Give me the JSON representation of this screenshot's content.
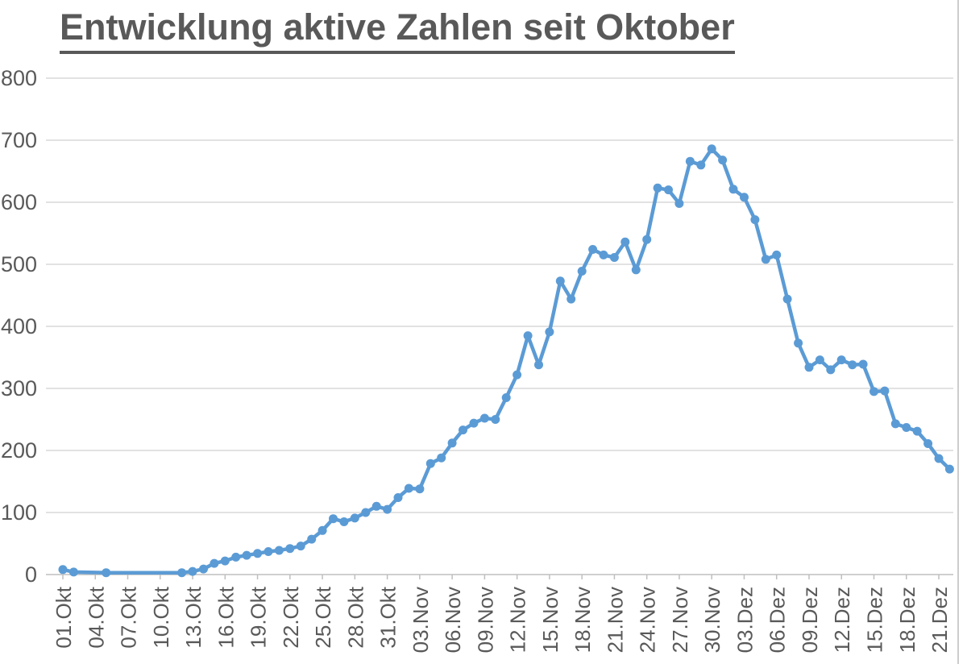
{
  "window": {
    "background": "#ffffff",
    "edge_color": "#cccccc"
  },
  "chart_data": {
    "type": "line",
    "title": "Entwicklung aktive Zahlen seit Oktober",
    "xlabel": "",
    "ylabel": "",
    "legend": "none",
    "grid": "horizontal",
    "ylim": [
      0,
      800
    ],
    "y_ticks": [
      0,
      100,
      200,
      300,
      400,
      500,
      600,
      700,
      800
    ],
    "x_tick_interval": 3,
    "x_tick_labels": [
      "01.Okt",
      "04.Okt",
      "07.Okt",
      "10.Okt",
      "13.Okt",
      "16.Okt",
      "19.Okt",
      "22.Okt",
      "25.Okt",
      "28.Okt",
      "31.Okt",
      "03.Nov",
      "06.Nov",
      "09.Nov",
      "12.Nov",
      "15.Nov",
      "18.Nov",
      "21.Nov",
      "24.Nov",
      "27.Nov",
      "30.Nov",
      "03.Dez",
      "06.Dez",
      "09.Dez",
      "12.Dez",
      "15.Dez",
      "18.Dez",
      "21.Dez"
    ],
    "x": [
      "01.Okt",
      "02.Okt",
      "03.Okt",
      "04.Okt",
      "05.Okt",
      "06.Okt",
      "07.Okt",
      "08.Okt",
      "09.Okt",
      "10.Okt",
      "11.Okt",
      "12.Okt",
      "13.Okt",
      "14.Okt",
      "15.Okt",
      "16.Okt",
      "17.Okt",
      "18.Okt",
      "19.Okt",
      "20.Okt",
      "21.Okt",
      "22.Okt",
      "23.Okt",
      "24.Okt",
      "25.Okt",
      "26.Okt",
      "27.Okt",
      "28.Okt",
      "29.Okt",
      "30.Okt",
      "31.Okt",
      "01.Nov",
      "02.Nov",
      "03.Nov",
      "04.Nov",
      "05.Nov",
      "06.Nov",
      "07.Nov",
      "08.Nov",
      "09.Nov",
      "10.Nov",
      "11.Nov",
      "12.Nov",
      "13.Nov",
      "14.Nov",
      "15.Nov",
      "16.Nov",
      "17.Nov",
      "18.Nov",
      "19.Nov",
      "20.Nov",
      "21.Nov",
      "22.Nov",
      "23.Nov",
      "24.Nov",
      "25.Nov",
      "26.Nov",
      "27.Nov",
      "28.Nov",
      "29.Nov",
      "30.Nov",
      "01.Dez",
      "02.Dez",
      "03.Dez",
      "04.Dez",
      "05.Dez",
      "06.Dez",
      "07.Dez",
      "08.Dez",
      "09.Dez",
      "10.Dez",
      "11.Dez",
      "12.Dez",
      "13.Dez",
      "14.Dez",
      "15.Dez",
      "16.Dez",
      "17.Dez",
      "18.Dez",
      "19.Dez",
      "20.Dez",
      "21.Dez",
      "22.Dez"
    ],
    "values": [
      8,
      4,
      null,
      null,
      3,
      null,
      null,
      null,
      null,
      null,
      null,
      3,
      5,
      9,
      18,
      22,
      28,
      31,
      34,
      37,
      39,
      42,
      46,
      57,
      71,
      90,
      85,
      91,
      100,
      110,
      105,
      124,
      139,
      138,
      179,
      188,
      212,
      233,
      244,
      252,
      250,
      285,
      322,
      385,
      338,
      391,
      473,
      444,
      489,
      524,
      515,
      511,
      536,
      491,
      540,
      623,
      620,
      598,
      666,
      660,
      686,
      668,
      621,
      608,
      572,
      508,
      515,
      444,
      373,
      334,
      346,
      330,
      346,
      338,
      339,
      295,
      296,
      243,
      237,
      231,
      211,
      187,
      170
    ],
    "line_color": "#5B9BD5",
    "marker": "circle",
    "gridline_color": "#D9D9D9",
    "axis_line_color": "#BFBFBF",
    "axis_label_color": "#595959",
    "title_color": "#595959"
  }
}
